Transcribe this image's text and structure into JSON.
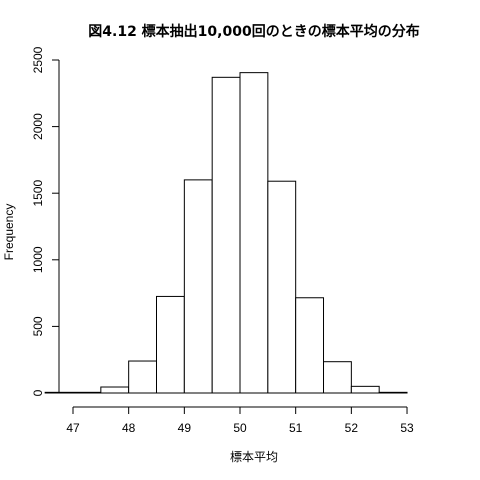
{
  "chart_data": {
    "type": "bar",
    "title": "図4.12 標本抽出10,000回のときの標本平均の分布",
    "xlabel": "標本平均",
    "ylabel": "Frequency",
    "bin_edges": [
      46.5,
      47.5,
      48.0,
      48.5,
      49.0,
      49.5,
      50.0,
      50.5,
      51.0,
      51.5,
      52.0,
      52.5,
      53.0,
      53.5
    ],
    "values": [
      5,
      45,
      240,
      725,
      1600,
      2370,
      2405,
      1590,
      715,
      235,
      50,
      5,
      0
    ],
    "xlim": [
      47,
      53
    ],
    "ylim": [
      0,
      2500
    ],
    "x_ticks": [
      47,
      48,
      49,
      50,
      51,
      52,
      53
    ],
    "y_ticks": [
      0,
      500,
      1000,
      1500,
      2000,
      2500
    ],
    "grid": false,
    "legend": "none"
  }
}
